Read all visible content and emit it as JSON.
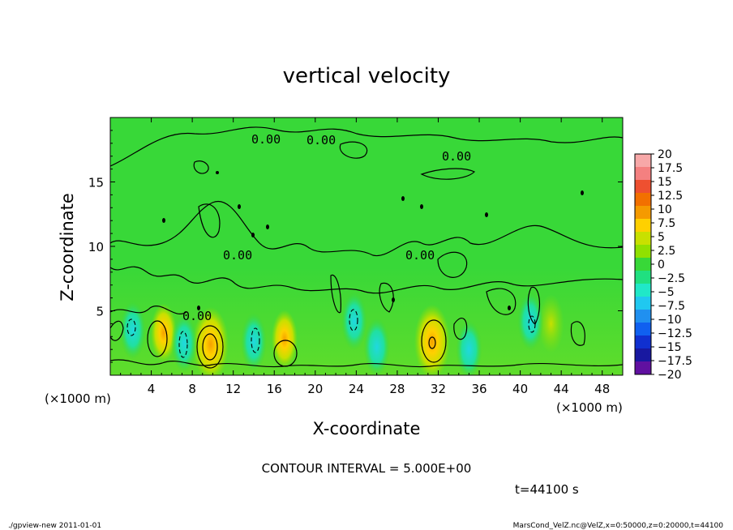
{
  "chart_data": {
    "type": "heatmap",
    "title": "vertical velocity",
    "xlabel": "X-coordinate",
    "ylabel": "Z-coordinate",
    "x_unit_label": "(×1000 m)",
    "y_unit_label": "(×1000 m)",
    "xlim": [
      0,
      50
    ],
    "ylim": [
      0,
      20
    ],
    "x_ticks": [
      "4",
      "8",
      "12",
      "16",
      "20",
      "24",
      "28",
      "32",
      "36",
      "40",
      "44",
      "48"
    ],
    "y_ticks": [
      "5",
      "10",
      "15"
    ],
    "colorbar_labels": [
      "20",
      "17.5",
      "15",
      "12.5",
      "10",
      "7.5",
      "5",
      "2.5",
      "0",
      "−2.5",
      "−5",
      "−7.5",
      "−10",
      "−12.5",
      "−15",
      "−17.5",
      "−20"
    ],
    "colorbar_colors": [
      "#f7a8a8",
      "#f48080",
      "#ee5030",
      "#f27000",
      "#f59a00",
      "#ffd000",
      "#c8e000",
      "#90e000",
      "#38d838",
      "#20e080",
      "#20e8c8",
      "#20c8f0",
      "#2090f0",
      "#1060f0",
      "#1030d0",
      "#1818a0",
      "#6010a0"
    ],
    "contour_labels": [
      "0.00",
      "0.00",
      "0.00",
      "0.00",
      "0.00",
      "0.00"
    ],
    "contour_interval_text": "CONTOUR INTERVAL = 5.000E+00",
    "time_text": "t=44100  s",
    "footer_left": "./gpview-new   2011-01-01",
    "footer_right": "MarsCond_VelZ.nc@VelZ,x=0:50000,z=0:20000,t=44100",
    "features": [
      {
        "kind": "updraft",
        "x": 9.8,
        "z": 2.4,
        "level": 7.5
      },
      {
        "kind": "updraft",
        "x": 31.4,
        "z": 2.6,
        "level": 10
      },
      {
        "kind": "updraft",
        "x": 5.2,
        "z": 3.3,
        "level": 5
      },
      {
        "kind": "updraft",
        "x": 17.0,
        "z": 2.8,
        "level": 5
      },
      {
        "kind": "updraft",
        "x": 43.0,
        "z": 4.0,
        "level": 2.5
      },
      {
        "kind": "downdraft",
        "x": 2.2,
        "z": 3.5,
        "level": -5
      },
      {
        "kind": "downdraft",
        "x": 7.2,
        "z": 2.5,
        "level": -5
      },
      {
        "kind": "downdraft",
        "x": 14.0,
        "z": 2.6,
        "level": -5
      },
      {
        "kind": "downdraft",
        "x": 23.8,
        "z": 4.2,
        "level": -5
      },
      {
        "kind": "downdraft",
        "x": 26.0,
        "z": 2.2,
        "level": -2.5
      },
      {
        "kind": "downdraft",
        "x": 35.0,
        "z": 2.0,
        "level": -2.5
      },
      {
        "kind": "downdraft",
        "x": 41.0,
        "z": 4.2,
        "level": -5
      }
    ]
  }
}
